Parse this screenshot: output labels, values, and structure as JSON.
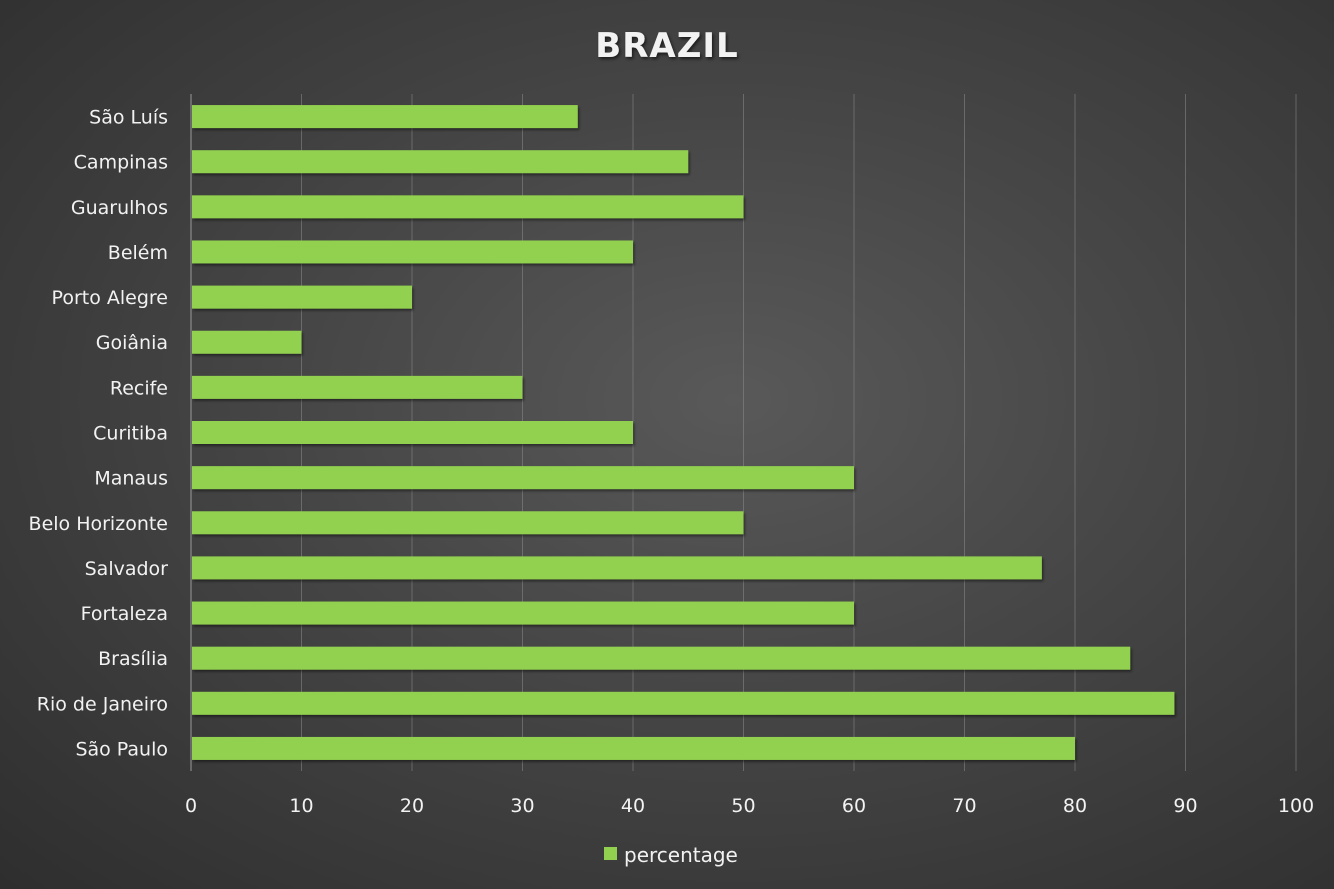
{
  "chart_data": {
    "type": "bar",
    "orientation": "horizontal",
    "title": "BRAZIL",
    "categories": [
      "São Luís",
      "Campinas",
      "Guarulhos",
      "Belém",
      "Porto Alegre",
      "Goiânia",
      "Recife",
      "Curitiba",
      "Manaus",
      "Belo Horizonte",
      "Salvador",
      "Fortaleza",
      "Brasília",
      "Rio de Janeiro",
      "São Paulo"
    ],
    "series": [
      {
        "name": "percentage",
        "color": "#92d050",
        "values": [
          35,
          45,
          50,
          40,
          20,
          10,
          30,
          40,
          60,
          50,
          77,
          60,
          85,
          89,
          80
        ]
      }
    ],
    "xlim": [
      0,
      100
    ],
    "x_ticks": [
      "0",
      "10",
      "20",
      "30",
      "40",
      "50",
      "60",
      "70",
      "80",
      "90",
      "100"
    ],
    "grid": "vertical",
    "legend_position": "bottom"
  }
}
